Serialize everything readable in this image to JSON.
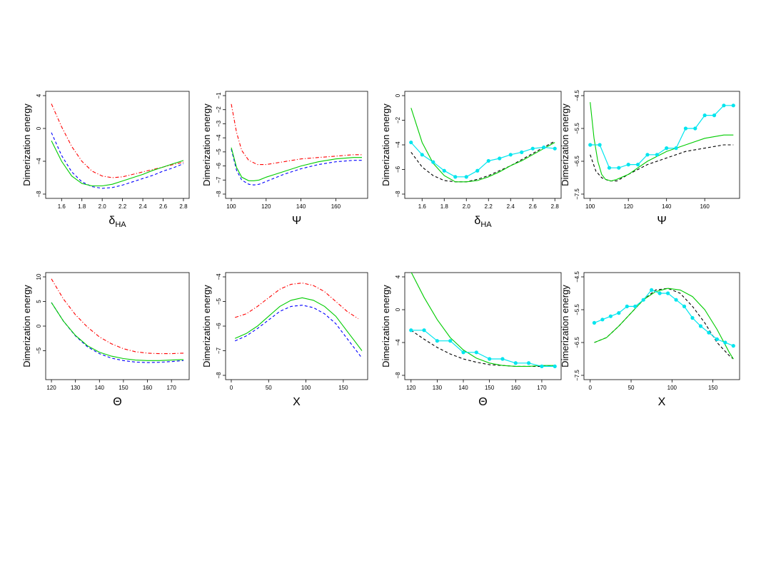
{
  "colors": {
    "red": "#ff0000",
    "blue": "#0000ff",
    "green": "#00cc00",
    "black": "#000000",
    "cyan": "#00e5ee"
  },
  "chart_data": [
    {
      "type": "line",
      "ylabel": "Dimerization energy",
      "xlabel": "δ",
      "xlabel_sub": "HA",
      "xlim": [
        1.5,
        2.8
      ],
      "ylim": [
        -8,
        4
      ],
      "xticks": [
        1.6,
        1.8,
        2.0,
        2.2,
        2.4,
        2.6,
        2.8
      ],
      "yticks": [
        -8,
        -4,
        0,
        4
      ],
      "xtick_labels": [
        "1.6",
        "1.8",
        "2.0",
        "2.2",
        "2.4",
        "2.6",
        "2.8"
      ],
      "ytick_labels": [
        "−8",
        "−4",
        "0",
        "4"
      ],
      "series": [
        {
          "color": "#ff0000",
          "style": "dashdot",
          "x": [
            1.5,
            1.6,
            1.7,
            1.8,
            1.9,
            2.0,
            2.1,
            2.2,
            2.3,
            2.4,
            2.5,
            2.6,
            2.7,
            2.8
          ],
          "y": [
            3.0,
            0.2,
            -2.2,
            -4.0,
            -5.2,
            -5.8,
            -6.0,
            -5.9,
            -5.6,
            -5.3,
            -5.0,
            -4.7,
            -4.4,
            -4.1
          ]
        },
        {
          "color": "#0000ff",
          "style": "dashed",
          "x": [
            1.5,
            1.6,
            1.7,
            1.8,
            1.9,
            2.0,
            2.1,
            2.2,
            2.3,
            2.4,
            2.5,
            2.6,
            2.7,
            2.8
          ],
          "y": [
            -0.5,
            -3.3,
            -5.3,
            -6.5,
            -7.1,
            -7.3,
            -7.2,
            -6.9,
            -6.5,
            -6.1,
            -5.7,
            -5.2,
            -4.8,
            -4.3
          ]
        },
        {
          "color": "#00cc00",
          "style": "solid",
          "x": [
            1.5,
            1.6,
            1.7,
            1.8,
            1.9,
            2.0,
            2.1,
            2.2,
            2.3,
            2.4,
            2.5,
            2.6,
            2.7,
            2.8
          ],
          "y": [
            -1.5,
            -4.0,
            -5.8,
            -6.7,
            -7.0,
            -7.0,
            -6.8,
            -6.4,
            -6.0,
            -5.6,
            -5.1,
            -4.7,
            -4.3,
            -3.9
          ]
        }
      ]
    },
    {
      "type": "line",
      "ylabel": "Dimerization energy",
      "xlabel": "Ψ",
      "xlabel_sub": "",
      "xlim": [
        100,
        175
      ],
      "ylim": [
        -8,
        -1
      ],
      "xticks": [
        100,
        120,
        140,
        160
      ],
      "yticks": [
        -8,
        -7,
        -6,
        -5,
        -4,
        -3,
        -2,
        -1
      ],
      "xtick_labels": [
        "100",
        "120",
        "140",
        "160"
      ],
      "ytick_labels": [
        "−8",
        "−7",
        "−6",
        "−5",
        "−4",
        "−3",
        "−2",
        "−1"
      ],
      "series": [
        {
          "color": "#ff0000",
          "style": "dashdot",
          "x": [
            100,
            103,
            106,
            110,
            115,
            120,
            130,
            140,
            150,
            160,
            170,
            175
          ],
          "y": [
            -1.6,
            -3.6,
            -4.9,
            -5.6,
            -5.9,
            -5.9,
            -5.7,
            -5.5,
            -5.4,
            -5.3,
            -5.2,
            -5.2
          ]
        },
        {
          "color": "#0000ff",
          "style": "dashed",
          "x": [
            100,
            103,
            106,
            110,
            113,
            116,
            120,
            130,
            140,
            150,
            160,
            170,
            175
          ],
          "y": [
            -4.8,
            -6.3,
            -7.0,
            -7.3,
            -7.35,
            -7.3,
            -7.1,
            -6.6,
            -6.2,
            -5.9,
            -5.7,
            -5.6,
            -5.6
          ]
        },
        {
          "color": "#00cc00",
          "style": "solid",
          "x": [
            100,
            103,
            106,
            110,
            113,
            116,
            120,
            130,
            140,
            150,
            160,
            170,
            175
          ],
          "y": [
            -4.7,
            -6.1,
            -6.8,
            -7.05,
            -7.05,
            -7.0,
            -6.8,
            -6.4,
            -6.0,
            -5.7,
            -5.5,
            -5.4,
            -5.4
          ]
        }
      ]
    },
    {
      "type": "line",
      "ylabel": "Dimerization energy",
      "xlabel": "δ",
      "xlabel_sub": "HA",
      "xlim": [
        1.5,
        2.8
      ],
      "ylim": [
        -8,
        0
      ],
      "xticks": [
        1.6,
        1.8,
        2.0,
        2.2,
        2.4,
        2.6,
        2.8
      ],
      "yticks": [
        -8,
        -6,
        -4,
        -2,
        0
      ],
      "xtick_labels": [
        "1.6",
        "1.8",
        "2.0",
        "2.2",
        "2.4",
        "2.6",
        "2.8"
      ],
      "ytick_labels": [
        "−8",
        "−6",
        "−4",
        "−2",
        "0"
      ],
      "series": [
        {
          "color": "#000000",
          "style": "dashed",
          "x": [
            1.5,
            1.6,
            1.7,
            1.8,
            1.9,
            2.0,
            2.1,
            2.2,
            2.3,
            2.4,
            2.5,
            2.6,
            2.7,
            2.8
          ],
          "y": [
            -4.6,
            -5.8,
            -6.5,
            -6.9,
            -7.0,
            -7.0,
            -6.8,
            -6.5,
            -6.1,
            -5.7,
            -5.2,
            -4.7,
            -4.2,
            -3.7
          ]
        },
        {
          "color": "#00cc00",
          "style": "solid",
          "x": [
            1.5,
            1.6,
            1.7,
            1.8,
            1.9,
            2.0,
            2.1,
            2.2,
            2.3,
            2.4,
            2.5,
            2.6,
            2.7,
            2.8
          ],
          "y": [
            -1.0,
            -3.8,
            -5.5,
            -6.5,
            -7.0,
            -7.0,
            -6.9,
            -6.6,
            -6.2,
            -5.7,
            -5.3,
            -4.8,
            -4.3,
            -3.8
          ]
        },
        {
          "color": "#00e5ee",
          "style": "points",
          "x": [
            1.5,
            1.6,
            1.7,
            1.8,
            1.9,
            2.0,
            2.1,
            2.2,
            2.3,
            2.4,
            2.5,
            2.6,
            2.7,
            2.8
          ],
          "y": [
            -3.8,
            -4.8,
            -5.4,
            -6.1,
            -6.6,
            -6.6,
            -6.1,
            -5.3,
            -5.1,
            -4.8,
            -4.6,
            -4.3,
            -4.2,
            -4.3
          ]
        }
      ]
    },
    {
      "type": "line",
      "ylabel": "Dimerization energy",
      "xlabel": "Ψ",
      "xlabel_sub": "",
      "xlim": [
        100,
        175
      ],
      "ylim": [
        -7.5,
        -4.5
      ],
      "xticks": [
        100,
        120,
        140,
        160
      ],
      "yticks": [
        -7.5,
        -6.5,
        -5.5,
        -4.5
      ],
      "xtick_labels": [
        "100",
        "120",
        "140",
        "160"
      ],
      "ytick_labels": [
        "−7.5",
        "−6.5",
        "−5.5",
        "−4.5"
      ],
      "series": [
        {
          "color": "#000000",
          "style": "dashed",
          "x": [
            100,
            103,
            106,
            110,
            114,
            120,
            130,
            140,
            150,
            160,
            170,
            175
          ],
          "y": [
            -6.3,
            -6.8,
            -7.0,
            -7.1,
            -7.1,
            -6.9,
            -6.6,
            -6.4,
            -6.2,
            -6.1,
            -6.0,
            -6.0
          ]
        },
        {
          "color": "#00cc00",
          "style": "solid",
          "x": [
            100,
            102,
            104,
            106,
            108,
            111,
            114,
            120,
            130,
            140,
            150,
            160,
            170,
            175
          ],
          "y": [
            -4.7,
            -5.8,
            -6.5,
            -6.9,
            -7.05,
            -7.1,
            -7.05,
            -6.9,
            -6.5,
            -6.2,
            -6.0,
            -5.8,
            -5.7,
            -5.7
          ]
        },
        {
          "color": "#00e5ee",
          "style": "points",
          "x": [
            100,
            105,
            110,
            115,
            120,
            125,
            130,
            135,
            140,
            145,
            150,
            155,
            160,
            165,
            170,
            175
          ],
          "y": [
            -6.0,
            -6.0,
            -6.7,
            -6.7,
            -6.6,
            -6.6,
            -6.3,
            -6.3,
            -6.1,
            -6.1,
            -5.5,
            -5.5,
            -5.1,
            -5.1,
            -4.8,
            -4.8
          ]
        }
      ]
    },
    {
      "type": "line",
      "ylabel": "Dimerization energy",
      "xlabel": "Θ",
      "xlabel_sub": "",
      "xlim": [
        120,
        175
      ],
      "ylim": [
        -10,
        10
      ],
      "xticks": [
        120,
        130,
        140,
        150,
        160,
        170
      ],
      "yticks": [
        -5,
        0,
        5,
        10
      ],
      "xtick_labels": [
        "120",
        "130",
        "140",
        "150",
        "160",
        "170"
      ],
      "ytick_labels": [
        "−5",
        "0",
        "5",
        "10"
      ],
      "series": [
        {
          "color": "#ff0000",
          "style": "dashdot",
          "x": [
            120,
            125,
            130,
            135,
            140,
            145,
            150,
            155,
            160,
            165,
            170,
            175
          ],
          "y": [
            9.6,
            5.5,
            2.3,
            -0.2,
            -2.2,
            -3.6,
            -4.6,
            -5.2,
            -5.5,
            -5.6,
            -5.6,
            -5.5
          ]
        },
        {
          "color": "#0000ff",
          "style": "dashed",
          "x": [
            120,
            125,
            130,
            135,
            140,
            145,
            150,
            155,
            160,
            165,
            170,
            175
          ],
          "y": [
            4.8,
            1.0,
            -2.0,
            -4.2,
            -5.6,
            -6.5,
            -7.0,
            -7.3,
            -7.4,
            -7.35,
            -7.2,
            -7.0
          ]
        },
        {
          "color": "#00cc00",
          "style": "solid",
          "x": [
            120,
            125,
            130,
            135,
            140,
            145,
            150,
            155,
            160,
            165,
            170,
            175
          ],
          "y": [
            4.8,
            1.0,
            -1.9,
            -4.0,
            -5.3,
            -6.1,
            -6.6,
            -6.9,
            -7.0,
            -7.0,
            -6.9,
            -6.8
          ]
        }
      ]
    },
    {
      "type": "line",
      "ylabel": "Dimerization energy",
      "xlabel": "X",
      "xlabel_sub": "",
      "xlim": [
        0,
        175
      ],
      "ylim": [
        -8,
        -4
      ],
      "xticks": [
        0,
        50,
        100,
        150
      ],
      "yticks": [
        -8,
        -7,
        -6,
        -5,
        -4
      ],
      "xtick_labels": [
        "0",
        "50",
        "100",
        "150"
      ],
      "ytick_labels": [
        "−8",
        "−7",
        "−6",
        "−5",
        "−4"
      ],
      "series": [
        {
          "color": "#ff0000",
          "style": "dashdot",
          "x": [
            5,
            20,
            35,
            50,
            65,
            80,
            95,
            110,
            125,
            140,
            155,
            170
          ],
          "y": [
            -5.65,
            -5.5,
            -5.2,
            -4.85,
            -4.5,
            -4.3,
            -4.25,
            -4.35,
            -4.6,
            -5.0,
            -5.4,
            -5.7
          ]
        },
        {
          "color": "#0000ff",
          "style": "dashed",
          "x": [
            5,
            20,
            35,
            50,
            65,
            80,
            95,
            110,
            125,
            140,
            155,
            165,
            170,
            175
          ],
          "y": [
            -6.6,
            -6.4,
            -6.1,
            -5.75,
            -5.4,
            -5.2,
            -5.15,
            -5.25,
            -5.5,
            -5.9,
            -6.5,
            -6.9,
            -7.1,
            -7.3
          ]
        },
        {
          "color": "#00cc00",
          "style": "solid",
          "x": [
            5,
            20,
            35,
            50,
            65,
            80,
            95,
            110,
            125,
            140,
            155,
            165,
            170,
            175
          ],
          "y": [
            -6.5,
            -6.3,
            -6.0,
            -5.6,
            -5.2,
            -4.95,
            -4.85,
            -4.95,
            -5.2,
            -5.6,
            -6.2,
            -6.6,
            -6.8,
            -7.0
          ]
        }
      ]
    },
    {
      "type": "line",
      "ylabel": "Dimerization energy",
      "xlabel": "Θ",
      "xlabel_sub": "",
      "xlim": [
        120,
        175
      ],
      "ylim": [
        -8,
        4
      ],
      "xticks": [
        120,
        130,
        140,
        150,
        160,
        170
      ],
      "yticks": [
        -8,
        -4,
        0,
        4
      ],
      "xtick_labels": [
        "120",
        "130",
        "140",
        "150",
        "160",
        "170"
      ],
      "ytick_labels": [
        "−8",
        "−4",
        "0",
        "4"
      ],
      "series": [
        {
          "color": "#000000",
          "style": "dashed",
          "x": [
            120,
            125,
            130,
            135,
            140,
            145,
            150,
            155,
            160,
            165,
            170,
            175
          ],
          "y": [
            -2.5,
            -3.6,
            -4.6,
            -5.4,
            -6.0,
            -6.4,
            -6.7,
            -6.8,
            -6.9,
            -6.9,
            -6.9,
            -6.8
          ]
        },
        {
          "color": "#00cc00",
          "style": "solid",
          "x": [
            120,
            125,
            130,
            135,
            140,
            145,
            150,
            155,
            160,
            165,
            170,
            175
          ],
          "y": [
            4.6,
            1.5,
            -1.2,
            -3.4,
            -4.9,
            -5.9,
            -6.5,
            -6.8,
            -6.9,
            -6.9,
            -6.8,
            -6.8
          ]
        },
        {
          "color": "#00e5ee",
          "style": "points",
          "x": [
            120,
            125,
            130,
            135,
            140,
            145,
            150,
            155,
            160,
            165,
            170,
            175
          ],
          "y": [
            -2.5,
            -2.5,
            -3.8,
            -3.8,
            -5.2,
            -5.2,
            -6.0,
            -6.0,
            -6.5,
            -6.5,
            -6.9,
            -6.9
          ]
        }
      ]
    },
    {
      "type": "line",
      "ylabel": "Dimerization energy",
      "xlabel": "X",
      "xlabel_sub": "",
      "xlim": [
        0,
        175
      ],
      "ylim": [
        -7.5,
        -4.5
      ],
      "xticks": [
        0,
        50,
        100,
        150
      ],
      "yticks": [
        -7.5,
        -6.5,
        -5.5,
        -4.5
      ],
      "xtick_labels": [
        "0",
        "50",
        "100",
        "150"
      ],
      "ytick_labels": [
        "−7.5",
        "−6.5",
        "−5.5",
        "−4.5"
      ],
      "series": [
        {
          "color": "#000000",
          "style": "dashed",
          "x": [
            5,
            20,
            35,
            50,
            65,
            80,
            95,
            110,
            125,
            140,
            155,
            170,
            175
          ],
          "y": [
            -6.5,
            -6.35,
            -6.0,
            -5.6,
            -5.2,
            -4.9,
            -4.85,
            -5.0,
            -5.4,
            -5.9,
            -6.5,
            -6.9,
            -7.0
          ]
        },
        {
          "color": "#00cc00",
          "style": "solid",
          "x": [
            5,
            20,
            35,
            50,
            65,
            80,
            95,
            110,
            125,
            140,
            155,
            170,
            175
          ],
          "y": [
            -6.5,
            -6.35,
            -6.0,
            -5.6,
            -5.2,
            -4.95,
            -4.85,
            -4.9,
            -5.1,
            -5.5,
            -6.1,
            -6.8,
            -7.0
          ]
        },
        {
          "color": "#00e5ee",
          "style": "points",
          "x": [
            5,
            15,
            25,
            35,
            45,
            55,
            65,
            75,
            85,
            95,
            105,
            115,
            125,
            135,
            145,
            155,
            165,
            175
          ],
          "y": [
            -5.9,
            -5.8,
            -5.7,
            -5.6,
            -5.4,
            -5.4,
            -5.2,
            -4.9,
            -5.0,
            -5.0,
            -5.2,
            -5.4,
            -5.75,
            -6.0,
            -6.2,
            -6.4,
            -6.5,
            -6.6
          ]
        }
      ]
    }
  ]
}
